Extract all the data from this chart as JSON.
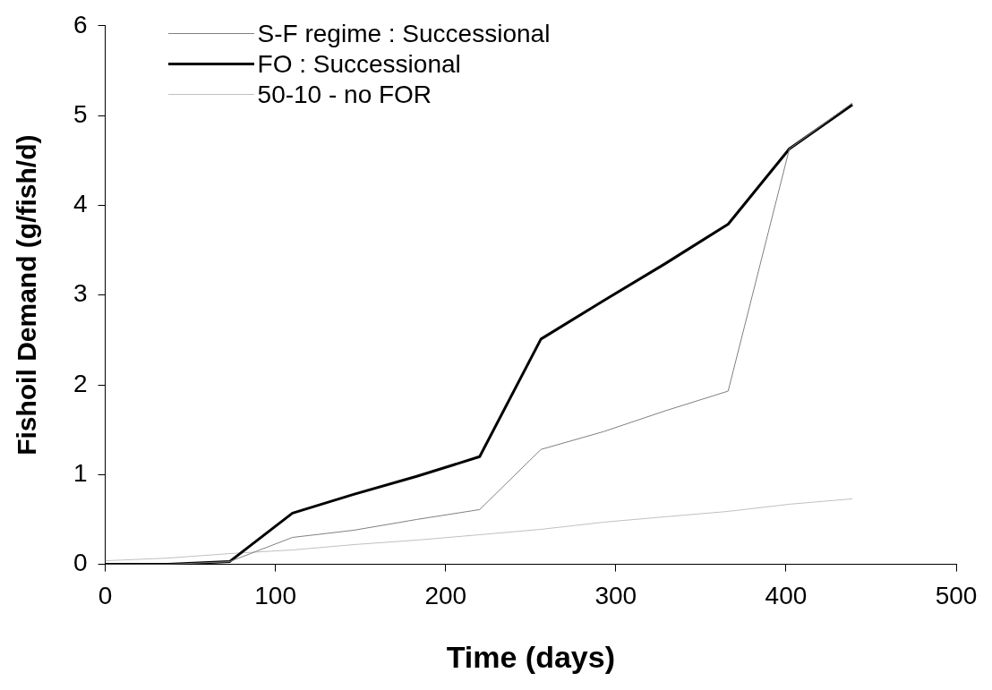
{
  "chart_data": {
    "type": "line",
    "xlabel": "Time (days)",
    "ylabel": "Fishoil Demand (g/fish/d)",
    "x": [
      0,
      37,
      73,
      110,
      146,
      183,
      220,
      256,
      293,
      329,
      366,
      402,
      439
    ],
    "series": [
      {
        "name": "S-F regime : Successional",
        "color": "#808080",
        "values": [
          0,
          0,
          0.03,
          0.3,
          0.38,
          0.5,
          0.61,
          1.28,
          1.48,
          1.71,
          1.93,
          4.63,
          5.14
        ]
      },
      {
        "name": "FO : Successional",
        "color": "#000000",
        "values": [
          0,
          0,
          0.03,
          0.57,
          0.78,
          0.98,
          1.2,
          2.51,
          2.94,
          3.35,
          3.79,
          4.63,
          5.12
        ]
      },
      {
        "name": "50-10 - no FOR",
        "color": "#c0c0c0",
        "values": [
          0.04,
          0.07,
          0.12,
          0.16,
          0.22,
          0.27,
          0.33,
          0.39,
          0.47,
          0.53,
          0.59,
          0.67,
          0.73
        ]
      }
    ],
    "xlim": [
      0,
      500
    ],
    "xticks": [
      0,
      100,
      200,
      300,
      400,
      500
    ],
    "ylim": [
      0,
      6
    ],
    "yticks": [
      0,
      1,
      2,
      3,
      4,
      5,
      6
    ],
    "grid": false,
    "legend": "top left",
    "marker": "none",
    "line_style": "solid"
  }
}
